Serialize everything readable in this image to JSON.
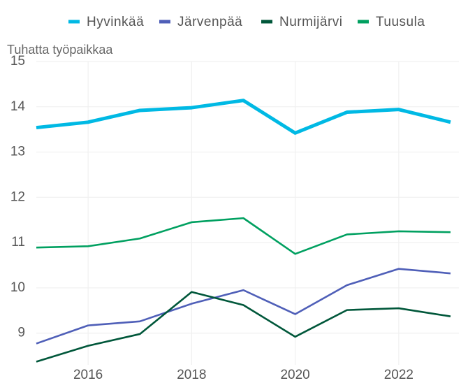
{
  "chart_data": {
    "type": "line",
    "y_label": "Tuhatta työpaikkaa",
    "x": [
      2015,
      2016,
      2017,
      2018,
      2019,
      2020,
      2021,
      2022,
      2023
    ],
    "series": [
      {
        "name": "Hyvinkää",
        "color": "#00b9e4",
        "values": [
          13.54,
          13.66,
          13.92,
          13.98,
          14.14,
          13.42,
          13.88,
          13.94,
          13.66
        ]
      },
      {
        "name": "Järvenpää",
        "color": "#4f5fb8",
        "values": [
          8.77,
          9.17,
          9.26,
          9.65,
          9.95,
          9.42,
          10.06,
          10.42,
          10.32
        ]
      },
      {
        "name": "Nurmijärvi",
        "color": "#00573a",
        "values": [
          8.37,
          8.72,
          8.98,
          9.91,
          9.62,
          8.92,
          9.51,
          9.55,
          9.37
        ]
      },
      {
        "name": "Tuusula",
        "color": "#00a060",
        "values": [
          10.89,
          10.92,
          11.09,
          11.45,
          11.54,
          10.75,
          11.18,
          11.25,
          11.23
        ]
      }
    ],
    "xlim": [
      2015,
      2023
    ],
    "xticks": [
      2016,
      2018,
      2020,
      2022
    ],
    "ylim": [
      8.3,
      15
    ],
    "yticks": [
      9,
      10,
      11,
      12,
      13,
      14,
      15
    ],
    "grid": true,
    "legend": "top"
  }
}
